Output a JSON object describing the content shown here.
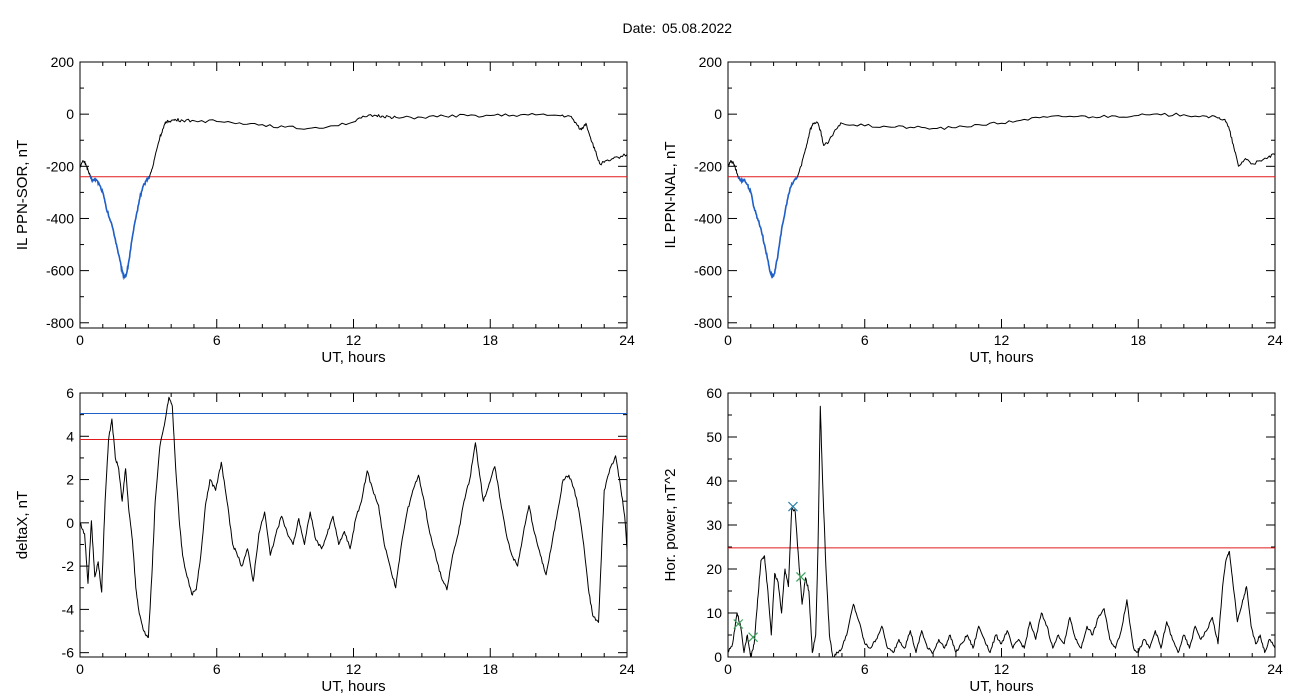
{
  "header": {
    "date_label": "Date:",
    "date_value": "05.08.2022"
  },
  "chart_data": [
    {
      "type": "line",
      "xlabel": "UT, hours",
      "ylabel": "IL PPN-SOR, nT",
      "xlim": [
        0,
        24
      ],
      "ylim": [
        -820,
        200
      ],
      "xticks": [
        0,
        6,
        12,
        18,
        24
      ],
      "yticks": [
        200,
        0,
        -200,
        -400,
        -600,
        -800
      ],
      "grid": false,
      "line_color": "#000000",
      "highlight_color": "#1f5fc8",
      "threshold": {
        "value": -240,
        "color": "#e11b1b"
      },
      "highlight_range": [
        0.45,
        3.05
      ],
      "x": [
        0,
        0.15,
        0.25,
        0.35,
        0.45,
        0.55,
        0.7,
        0.85,
        1.0,
        1.15,
        1.3,
        1.45,
        1.6,
        1.75,
        1.85,
        1.95,
        2.05,
        2.15,
        2.3,
        2.45,
        2.6,
        2.75,
        2.9,
        3.05,
        3.2,
        3.35,
        3.5,
        3.65,
        3.75,
        3.85,
        4.0,
        4.2,
        4.5,
        5.0,
        6.0,
        7.0,
        8.0,
        9.0,
        10.0,
        11.0,
        12.0,
        12.5,
        13.0,
        13.3,
        13.6,
        14.0,
        15.0,
        16.0,
        17.0,
        18.0,
        19.0,
        20.0,
        21.0,
        21.5,
        21.8,
        22.0,
        22.2,
        22.4,
        22.6,
        22.8,
        23.0,
        23.3,
        23.6,
        24.0
      ],
      "values": [
        -200,
        -180,
        -190,
        -215,
        -240,
        -255,
        -250,
        -270,
        -300,
        -360,
        -400,
        -440,
        -500,
        -560,
        -605,
        -625,
        -610,
        -560,
        -470,
        -400,
        -330,
        -280,
        -255,
        -240,
        -200,
        -140,
        -90,
        -55,
        -35,
        -25,
        -25,
        -22,
        -24,
        -25,
        -28,
        -33,
        -40,
        -50,
        -55,
        -45,
        -30,
        -10,
        -5,
        -8,
        -10,
        -15,
        -12,
        -8,
        -6,
        -5,
        -4,
        -3,
        -5,
        -8,
        -40,
        -60,
        -35,
        -90,
        -140,
        -190,
        -185,
        -175,
        -165,
        -155
      ]
    },
    {
      "type": "line",
      "xlabel": "UT, hours",
      "ylabel": "IL PPN-NAL, nT",
      "xlim": [
        0,
        24
      ],
      "ylim": [
        -820,
        200
      ],
      "xticks": [
        0,
        6,
        12,
        18,
        24
      ],
      "yticks": [
        200,
        0,
        -200,
        -400,
        -600,
        -800
      ],
      "grid": false,
      "line_color": "#000000",
      "highlight_color": "#1f5fc8",
      "threshold": {
        "value": -240,
        "color": "#e11b1b"
      },
      "highlight_range": [
        0.45,
        3.05
      ],
      "x": [
        0,
        0.15,
        0.25,
        0.35,
        0.45,
        0.55,
        0.7,
        0.85,
        1.0,
        1.15,
        1.3,
        1.45,
        1.6,
        1.75,
        1.85,
        1.95,
        2.05,
        2.15,
        2.3,
        2.45,
        2.6,
        2.75,
        2.9,
        3.05,
        3.2,
        3.35,
        3.5,
        3.6,
        3.75,
        3.9,
        4.05,
        4.2,
        4.4,
        4.7,
        5.0,
        6.0,
        7.0,
        8.0,
        9.0,
        10.0,
        11.0,
        12.0,
        13.0,
        14.0,
        15.0,
        16.0,
        17.0,
        18.0,
        19.0,
        20.0,
        21.0,
        21.5,
        21.8,
        22.0,
        22.2,
        22.4,
        22.7,
        23.0,
        23.4,
        23.7,
        24.0
      ],
      "values": [
        -200,
        -180,
        -190,
        -215,
        -240,
        -255,
        -250,
        -270,
        -300,
        -360,
        -400,
        -440,
        -500,
        -560,
        -605,
        -625,
        -610,
        -560,
        -470,
        -400,
        -330,
        -280,
        -255,
        -240,
        -200,
        -150,
        -100,
        -60,
        -35,
        -30,
        -60,
        -120,
        -110,
        -60,
        -35,
        -45,
        -48,
        -50,
        -55,
        -52,
        -40,
        -35,
        -20,
        -12,
        -8,
        -10,
        -7,
        -5,
        -3,
        -2,
        -8,
        -15,
        -20,
        -60,
        -130,
        -200,
        -170,
        -190,
        -180,
        -165,
        -155
      ]
    },
    {
      "type": "line",
      "xlabel": "UT, hours",
      "ylabel": "deltaX, nT",
      "xlim": [
        0,
        24
      ],
      "ylim": [
        -6.2,
        6
      ],
      "xticks": [
        0,
        6,
        12,
        18,
        24
      ],
      "yticks": [
        6,
        4,
        2,
        0,
        -2,
        -4,
        -6
      ],
      "grid": false,
      "line_color": "#000000",
      "thresholds": [
        {
          "value": 5.05,
          "color": "#1f5fc8"
        },
        {
          "value": 3.85,
          "color": "#e11b1b"
        }
      ],
      "x": [
        0,
        0.2,
        0.35,
        0.5,
        0.65,
        0.8,
        0.95,
        1.1,
        1.25,
        1.4,
        1.55,
        1.7,
        1.85,
        2.0,
        2.15,
        2.3,
        2.45,
        2.6,
        2.8,
        3.0,
        3.15,
        3.3,
        3.5,
        3.7,
        3.9,
        4.05,
        4.2,
        4.35,
        4.5,
        4.7,
        4.9,
        5.1,
        5.3,
        5.5,
        5.7,
        5.95,
        6.2,
        6.45,
        6.7,
        6.9,
        7.1,
        7.35,
        7.6,
        7.85,
        8.1,
        8.35,
        8.6,
        8.85,
        9.1,
        9.35,
        9.6,
        9.85,
        10.1,
        10.35,
        10.6,
        10.85,
        11.1,
        11.35,
        11.6,
        11.85,
        12.1,
        12.35,
        12.6,
        12.85,
        13.1,
        13.35,
        13.6,
        13.85,
        14.1,
        14.35,
        14.6,
        14.85,
        15.1,
        15.35,
        15.6,
        15.85,
        16.1,
        16.35,
        16.6,
        16.85,
        17.1,
        17.35,
        17.5,
        17.7,
        17.95,
        18.2,
        18.45,
        18.7,
        18.95,
        19.2,
        19.45,
        19.7,
        19.95,
        20.2,
        20.45,
        20.7,
        20.95,
        21.2,
        21.45,
        21.7,
        21.9,
        22.1,
        22.3,
        22.5,
        22.75,
        23.0,
        23.25,
        23.5,
        23.7,
        23.9,
        24.0
      ],
      "values": [
        0,
        -0.5,
        -2.8,
        0.1,
        -2.5,
        -1.8,
        -3.2,
        1.0,
        3.8,
        4.8,
        3.0,
        2.5,
        1.0,
        2.5,
        0.5,
        -0.8,
        -3.0,
        -4.2,
        -5.0,
        -5.3,
        -2.5,
        1.0,
        3.5,
        4.5,
        5.8,
        5.4,
        2.5,
        0.2,
        -1.5,
        -2.5,
        -3.3,
        -3.1,
        -1.5,
        0.8,
        2.0,
        1.5,
        2.8,
        1.0,
        -1.0,
        -1.5,
        -2.0,
        -1.2,
        -2.7,
        -0.5,
        0.5,
        -1.5,
        -0.5,
        0.3,
        -0.5,
        -1.0,
        0.2,
        -1.0,
        0.5,
        -0.8,
        -1.2,
        -0.5,
        0.3,
        -1.0,
        -0.4,
        -1.2,
        0.2,
        1.0,
        2.4,
        1.5,
        0.8,
        -1.0,
        -2.0,
        -3.0,
        -1.0,
        0.5,
        1.5,
        2.2,
        1.0,
        -0.5,
        -1.5,
        -2.5,
        -3.1,
        -1.5,
        -0.5,
        1.0,
        2.0,
        3.7,
        2.5,
        1.0,
        1.8,
        2.6,
        1.0,
        -0.5,
        -1.5,
        -2.0,
        -0.5,
        0.8,
        -0.5,
        -1.5,
        -2.4,
        -1.0,
        0.5,
        2.0,
        2.2,
        1.5,
        0.5,
        -1.0,
        -3.0,
        -4.3,
        -4.6,
        1.5,
        2.5,
        3.1,
        1.8,
        0.3,
        -1.2
      ]
    },
    {
      "type": "line",
      "xlabel": "UT, hours",
      "ylabel": "Hor. power, nT^2",
      "xlim": [
        0,
        24
      ],
      "ylim": [
        0,
        60
      ],
      "xticks": [
        0,
        6,
        12,
        18,
        24
      ],
      "yticks": [
        60,
        50,
        40,
        30,
        20,
        10,
        0
      ],
      "grid": false,
      "line_color": "#000000",
      "threshold": {
        "value": 24.8,
        "color": "#e11b1b"
      },
      "markers": [
        {
          "x": 0.45,
          "y": 7.5,
          "color": "#3aa05a"
        },
        {
          "x": 1.1,
          "y": 4.5,
          "color": "#3aa05a"
        },
        {
          "x": 2.85,
          "y": 34.2,
          "color": "#2a7fa8"
        },
        {
          "x": 3.2,
          "y": 18.2,
          "color": "#3aa05a"
        }
      ],
      "x": [
        0,
        0.2,
        0.4,
        0.55,
        0.7,
        0.85,
        1.0,
        1.15,
        1.3,
        1.45,
        1.6,
        1.75,
        1.9,
        2.05,
        2.2,
        2.35,
        2.5,
        2.65,
        2.8,
        2.95,
        3.1,
        3.25,
        3.4,
        3.55,
        3.7,
        3.85,
        3.95,
        4.05,
        4.15,
        4.3,
        4.45,
        4.6,
        4.8,
        5.0,
        5.25,
        5.5,
        5.75,
        6.0,
        6.25,
        6.5,
        6.75,
        7.0,
        7.25,
        7.5,
        7.75,
        8.0,
        8.25,
        8.5,
        8.75,
        9.0,
        9.25,
        9.5,
        9.75,
        10.0,
        10.25,
        10.5,
        10.75,
        11.0,
        11.25,
        11.5,
        11.75,
        12.0,
        12.25,
        12.5,
        12.75,
        13.0,
        13.25,
        13.5,
        13.75,
        14.0,
        14.25,
        14.5,
        14.75,
        15.0,
        15.25,
        15.5,
        15.75,
        16.0,
        16.25,
        16.5,
        16.75,
        17.0,
        17.25,
        17.5,
        17.65,
        17.8,
        18.0,
        18.25,
        18.5,
        18.75,
        19.0,
        19.25,
        19.5,
        19.75,
        20.0,
        20.25,
        20.5,
        20.75,
        21.0,
        21.25,
        21.5,
        21.7,
        21.85,
        22.0,
        22.15,
        22.35,
        22.55,
        22.75,
        22.95,
        23.15,
        23.35,
        23.55,
        23.75,
        24.0
      ],
      "values": [
        1,
        3,
        10,
        7,
        1,
        5,
        0,
        3,
        13,
        22,
        23,
        15,
        5,
        19,
        17,
        10,
        20,
        16,
        34,
        33,
        22,
        12,
        18,
        15,
        1,
        5,
        25,
        57,
        40,
        20,
        5,
        0,
        1,
        2,
        6,
        12,
        8,
        3,
        2,
        4,
        7,
        2,
        1,
        4,
        2,
        6,
        1,
        6,
        2,
        1,
        4,
        2,
        5,
        1,
        3,
        5,
        2,
        7,
        4,
        1,
        5,
        3,
        6,
        2,
        4,
        2,
        8,
        4,
        10,
        7,
        2,
        5,
        3,
        9,
        4,
        2,
        7,
        5,
        9,
        11,
        4,
        2,
        6,
        13,
        7,
        2,
        1,
        4,
        2,
        6,
        2,
        8,
        4,
        1,
        5,
        2,
        7,
        4,
        6,
        9,
        3,
        16,
        22,
        24,
        17,
        8,
        12,
        16,
        7,
        3,
        5,
        1,
        4,
        2
      ]
    }
  ]
}
